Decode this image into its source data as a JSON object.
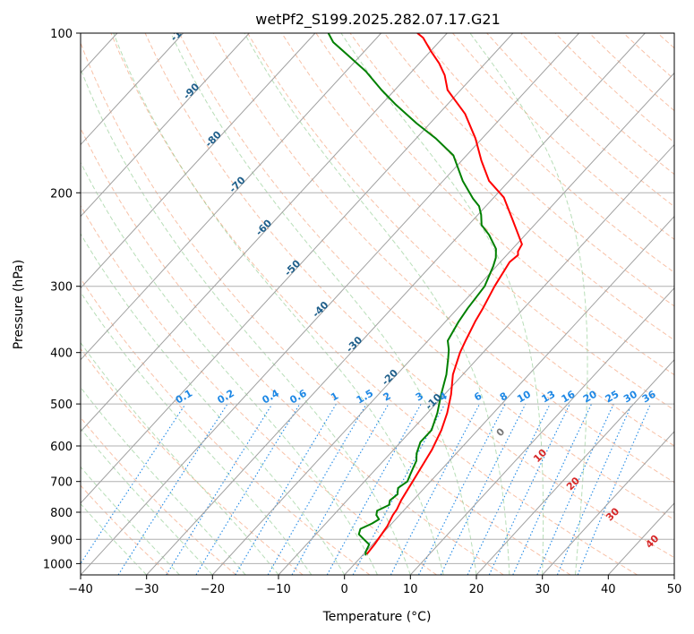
{
  "chart_data": {
    "type": "line",
    "title": "wetPf2_S199.2025.282.07.17.G21",
    "xlabel": "Temperature (°C)",
    "ylabel": "Pressure (hPa)",
    "xlim": [
      -40,
      50
    ],
    "ylim": [
      1050,
      100
    ],
    "x_ticks": [
      -40,
      -30,
      -20,
      -10,
      0,
      10,
      20,
      30,
      40,
      50
    ],
    "y_ticks": [
      100,
      200,
      300,
      400,
      500,
      600,
      700,
      800,
      900,
      1000
    ],
    "grid": true,
    "series": [
      {
        "name": "Temperature",
        "color": "#ff0000",
        "points": [
          [
            0.5,
            960
          ],
          [
            0.3,
            920
          ],
          [
            -0.3,
            850
          ],
          [
            -1,
            810
          ],
          [
            -1.2,
            790
          ],
          [
            -1.8,
            760
          ],
          [
            -2.7,
            700
          ],
          [
            -3.5,
            650
          ],
          [
            -4.2,
            610
          ],
          [
            -5.5,
            560
          ],
          [
            -7,
            520
          ],
          [
            -9,
            480
          ],
          [
            -11.5,
            440
          ],
          [
            -13.5,
            400
          ],
          [
            -14.3,
            380
          ],
          [
            -15.5,
            350
          ],
          [
            -16.2,
            330
          ],
          [
            -17.5,
            300
          ],
          [
            -18.6,
            270
          ],
          [
            -18.3,
            262
          ],
          [
            -18.8,
            258
          ],
          [
            -19.2,
            250
          ],
          [
            -24,
            225
          ],
          [
            -28.5,
            204
          ],
          [
            -33,
            190
          ],
          [
            -37,
            174
          ],
          [
            -41,
            158
          ],
          [
            -46,
            142
          ],
          [
            -52,
            128
          ],
          [
            -54.5,
            120
          ],
          [
            -57,
            114
          ],
          [
            -60,
            108
          ],
          [
            -63,
            102
          ],
          [
            -64.5,
            100
          ]
        ]
      },
      {
        "name": "Dewpoint",
        "color": "#008000",
        "points": [
          [
            0.5,
            965
          ],
          [
            0,
            950
          ],
          [
            -0.5,
            920
          ],
          [
            -2,
            900
          ],
          [
            -3.5,
            880
          ],
          [
            -4,
            860
          ],
          [
            -3,
            840
          ],
          [
            -2.5,
            825
          ],
          [
            -3.5,
            810
          ],
          [
            -4,
            795
          ],
          [
            -3,
            775
          ],
          [
            -3.5,
            760
          ],
          [
            -3.2,
            740
          ],
          [
            -4,
            720
          ],
          [
            -3.5,
            700
          ],
          [
            -4,
            680
          ],
          [
            -4.5,
            660
          ],
          [
            -5,
            640
          ],
          [
            -6,
            620
          ],
          [
            -7,
            590
          ],
          [
            -7,
            560
          ],
          [
            -8.5,
            520
          ],
          [
            -10.5,
            480
          ],
          [
            -12.5,
            440
          ],
          [
            -14.5,
            410
          ],
          [
            -15.6,
            395
          ],
          [
            -17,
            380
          ],
          [
            -17.5,
            365
          ],
          [
            -18,
            350
          ],
          [
            -18.5,
            330
          ],
          [
            -19,
            300
          ],
          [
            -20.5,
            275
          ],
          [
            -21.3,
            265
          ],
          [
            -22.5,
            255
          ],
          [
            -25.5,
            240
          ],
          [
            -28,
            230
          ],
          [
            -29.5,
            220
          ],
          [
            -31,
            212
          ],
          [
            -33,
            205
          ],
          [
            -37,
            190
          ],
          [
            -42,
            170
          ],
          [
            -47,
            158
          ],
          [
            -52,
            148
          ],
          [
            -58,
            136
          ],
          [
            -62,
            128
          ],
          [
            -67,
            118
          ],
          [
            -72,
            110
          ],
          [
            -76,
            104
          ],
          [
            -78,
            100
          ]
        ]
      }
    ],
    "isotherm_labels": [
      "-100",
      "-90",
      "-80",
      "-70",
      "-60",
      "-50",
      "-40",
      "-30",
      "-20",
      "-10"
    ],
    "mixing_ratio_labels": [
      "0.1",
      "0.2",
      "0.4",
      "0.6",
      "1",
      "1.5",
      "2",
      "3",
      "4",
      "6",
      "8",
      "10",
      "13",
      "16",
      "20",
      "25",
      "30",
      "36"
    ],
    "moist_adiabat_labels": [
      "0",
      "10",
      "20",
      "30",
      "40"
    ]
  }
}
